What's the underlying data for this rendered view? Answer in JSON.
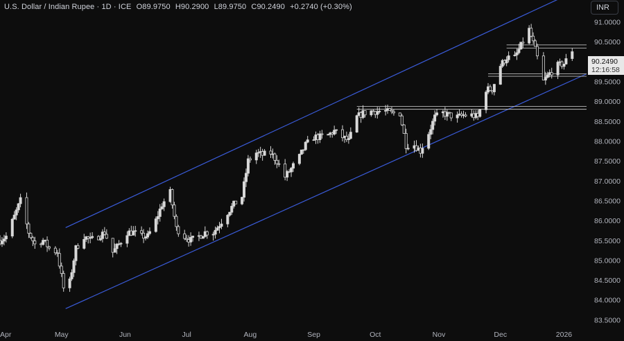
{
  "header": {
    "symbol": "U.S. Dollar / Indian Rupee · 1D · ICE",
    "open": "O89.9750",
    "high": "H90.2900",
    "low": "L89.9750",
    "close": "C90.2490",
    "change": "+0.2740 (+0.30%)"
  },
  "currency_button": "INR",
  "last_price": {
    "value": "90.2490",
    "countdown": "12:16:58"
  },
  "colors": {
    "background": "#0d0d0d",
    "candle": "#d8d8d8",
    "channel": "#3a5bd9",
    "level_lines": "#bdbdbd",
    "axis_text": "#b2b5be"
  },
  "chart_data": {
    "type": "candlestick",
    "title": "U.S. Dollar / Indian Rupee · 1D · ICE",
    "x_tick_labels": [
      "Apr",
      "May",
      "Jun",
      "Jul",
      "Aug",
      "Sep",
      "Oct",
      "Nov",
      "Dec",
      "2026"
    ],
    "y_tick_labels": [
      "91.0000",
      "90.5000",
      "89.5000",
      "89.0000",
      "88.5000",
      "88.0000",
      "87.5000",
      "87.0000",
      "86.5000",
      "86.0000",
      "85.5000",
      "85.0000",
      "84.5000",
      "84.0000",
      "83.5000"
    ],
    "ylim": [
      83.35,
      91.55
    ],
    "xlim": [
      "2025-04-01",
      "2026-01-12"
    ],
    "close_path": [
      [
        "2025-04-01",
        85.5
      ],
      [
        "2025-04-04",
        85.6
      ],
      [
        "2025-04-08",
        86.1
      ],
      [
        "2025-04-11",
        86.5
      ],
      [
        "2025-04-15",
        85.7
      ],
      [
        "2025-04-18",
        85.4
      ],
      [
        "2025-04-22",
        85.5
      ],
      [
        "2025-04-25",
        85.3
      ],
      [
        "2025-04-29",
        85.2
      ],
      [
        "2025-05-02",
        84.3
      ],
      [
        "2025-05-05",
        84.45
      ],
      [
        "2025-05-08",
        85.3
      ],
      [
        "2025-05-12",
        85.6
      ],
      [
        "2025-05-15",
        85.5
      ],
      [
        "2025-05-19",
        85.6
      ],
      [
        "2025-05-22",
        85.7
      ],
      [
        "2025-05-26",
        85.2
      ],
      [
        "2025-05-29",
        85.4
      ],
      [
        "2025-06-02",
        85.7
      ],
      [
        "2025-06-05",
        85.7
      ],
      [
        "2025-06-09",
        85.6
      ],
      [
        "2025-06-12",
        85.6
      ],
      [
        "2025-06-16",
        86.0
      ],
      [
        "2025-06-19",
        86.4
      ],
      [
        "2025-06-23",
        86.7
      ],
      [
        "2025-06-26",
        85.8
      ],
      [
        "2025-06-30",
        85.6
      ],
      [
        "2025-07-03",
        85.5
      ],
      [
        "2025-07-07",
        85.6
      ],
      [
        "2025-07-10",
        85.7
      ],
      [
        "2025-07-14",
        85.7
      ],
      [
        "2025-07-17",
        85.9
      ],
      [
        "2025-07-21",
        86.2
      ],
      [
        "2025-07-24",
        86.4
      ],
      [
        "2025-07-28",
        86.6
      ],
      [
        "2025-07-31",
        87.5
      ],
      [
        "2025-08-04",
        87.7
      ],
      [
        "2025-08-07",
        87.65
      ],
      [
        "2025-08-11",
        87.7
      ],
      [
        "2025-08-14",
        87.5
      ],
      [
        "2025-08-18",
        87.1
      ],
      [
        "2025-08-21",
        87.3
      ],
      [
        "2025-08-25",
        87.6
      ],
      [
        "2025-08-28",
        87.9
      ],
      [
        "2025-09-01",
        88.1
      ],
      [
        "2025-09-04",
        88.1
      ],
      [
        "2025-09-08",
        88.15
      ],
      [
        "2025-09-11",
        88.25
      ],
      [
        "2025-09-15",
        88.1
      ],
      [
        "2025-09-18",
        88.0
      ],
      [
        "2025-09-22",
        88.6
      ],
      [
        "2025-09-25",
        88.7
      ],
      [
        "2025-09-29",
        88.75
      ],
      [
        "2025-10-02",
        88.75
      ],
      [
        "2025-10-06",
        88.75
      ],
      [
        "2025-10-09",
        88.7
      ],
      [
        "2025-10-13",
        88.7
      ],
      [
        "2025-10-16",
        87.9
      ],
      [
        "2025-10-20",
        87.9
      ],
      [
        "2025-10-23",
        87.75
      ],
      [
        "2025-10-27",
        88.2
      ],
      [
        "2025-10-30",
        88.6
      ],
      [
        "2025-11-03",
        88.7
      ],
      [
        "2025-11-06",
        88.65
      ],
      [
        "2025-11-10",
        88.6
      ],
      [
        "2025-11-13",
        88.65
      ],
      [
        "2025-11-17",
        88.65
      ],
      [
        "2025-11-20",
        88.6
      ],
      [
        "2025-11-24",
        89.3
      ],
      [
        "2025-11-27",
        89.3
      ],
      [
        "2025-12-01",
        89.9
      ],
      [
        "2025-12-04",
        90.1
      ],
      [
        "2025-12-08",
        90.1
      ],
      [
        "2025-12-11",
        90.4
      ],
      [
        "2025-12-15",
        90.8
      ],
      [
        "2025-12-18",
        90.3
      ],
      [
        "2025-12-22",
        89.5
      ],
      [
        "2025-12-25",
        89.7
      ],
      [
        "2025-12-29",
        89.9
      ],
      [
        "2026-01-01",
        89.95
      ],
      [
        "2026-01-05",
        90.249
      ]
    ],
    "trend_channel": {
      "upper": [
        [
          "2025-05-03",
          85.82
        ],
        [
          "2026-01-12",
          91.9
        ]
      ],
      "lower": [
        [
          "2025-05-03",
          83.78
        ],
        [
          "2026-01-12",
          89.69
        ]
      ]
    },
    "horizontal_levels": [
      {
        "from": "2025-12-04",
        "to": "2026-01-12",
        "value": 90.34
      },
      {
        "from": "2025-12-04",
        "to": "2026-01-12",
        "value": 90.42
      },
      {
        "from": "2025-11-25",
        "to": "2026-01-12",
        "value": 89.69
      },
      {
        "from": "2025-11-25",
        "to": "2026-01-12",
        "value": 89.63
      },
      {
        "from": "2025-09-22",
        "to": "2026-01-12",
        "value": 88.87
      },
      {
        "from": "2025-09-22",
        "to": "2026-01-12",
        "value": 88.8
      }
    ],
    "last_value": 90.249
  }
}
